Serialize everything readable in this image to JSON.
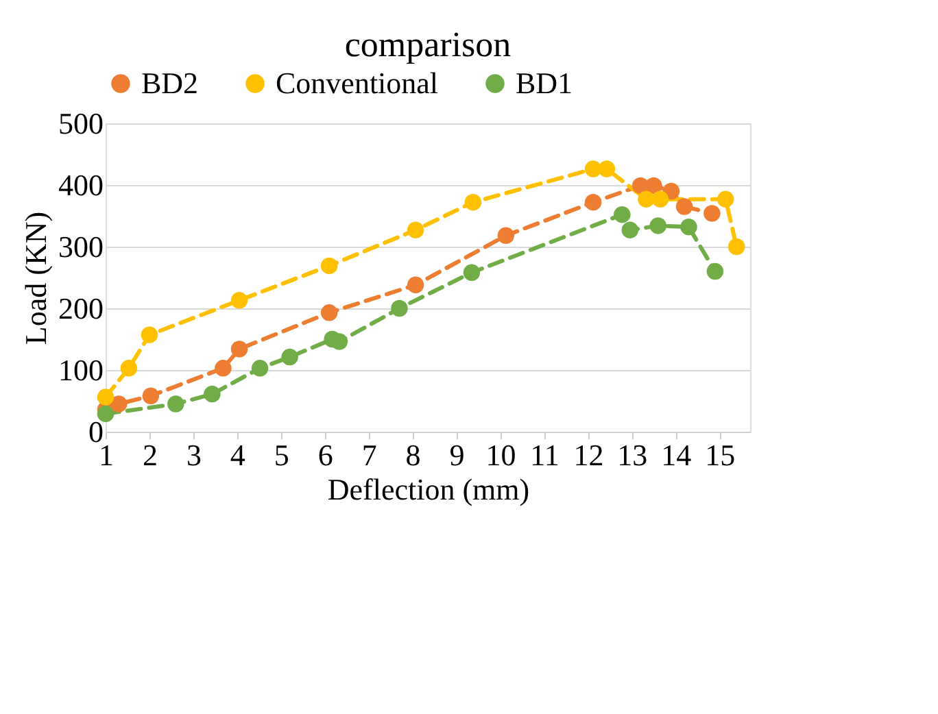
{
  "chart_data": {
    "type": "line",
    "title": "comparison",
    "xlabel": "Deflection    (mm)",
    "ylabel": "Load (KN)",
    "xlim": [
      1,
      15.7
    ],
    "xticks": [
      1,
      2,
      3,
      4,
      5,
      6,
      7,
      8,
      9,
      10,
      11,
      12,
      13,
      14,
      15
    ],
    "ylim": [
      0,
      500
    ],
    "yticks": [
      0,
      100,
      200,
      300,
      400,
      500
    ],
    "grid": "y",
    "legend": "top",
    "marker": "circle",
    "line_style": "dashed",
    "series": [
      {
        "name": "BD2",
        "color": "#ed7d31",
        "x": [
          1,
          1.3,
          2.03,
          3.68,
          4.05,
          6.1,
          8.07,
          10.13,
          12.12,
          13.2,
          13.5,
          13.9,
          14.2,
          14.83
        ],
        "values": [
          36,
          45,
          58,
          103,
          134,
          193,
          238,
          318,
          372,
          399,
          399,
          390,
          365,
          354
        ]
      },
      {
        "name": "Conventional",
        "color": "#ffc000",
        "x": [
          1,
          1.53,
          2.0,
          4.05,
          6.1,
          8.07,
          9.38,
          12.12,
          12.43,
          13.33,
          13.65,
          15.14,
          15.39
        ],
        "values": [
          56,
          103,
          157,
          213,
          269,
          327,
          372,
          426,
          426,
          377,
          377,
          377,
          300
        ]
      },
      {
        "name": "BD1",
        "color": "#70ad47",
        "x": [
          1,
          2.6,
          3.43,
          4.52,
          5.2,
          6.17,
          6.33,
          7.7,
          9.35,
          12.78,
          12.96,
          13.6,
          14.3,
          14.9
        ],
        "values": [
          29,
          45,
          61,
          103,
          121,
          150,
          146,
          200,
          258,
          352,
          327,
          334,
          332,
          260
        ]
      }
    ]
  }
}
